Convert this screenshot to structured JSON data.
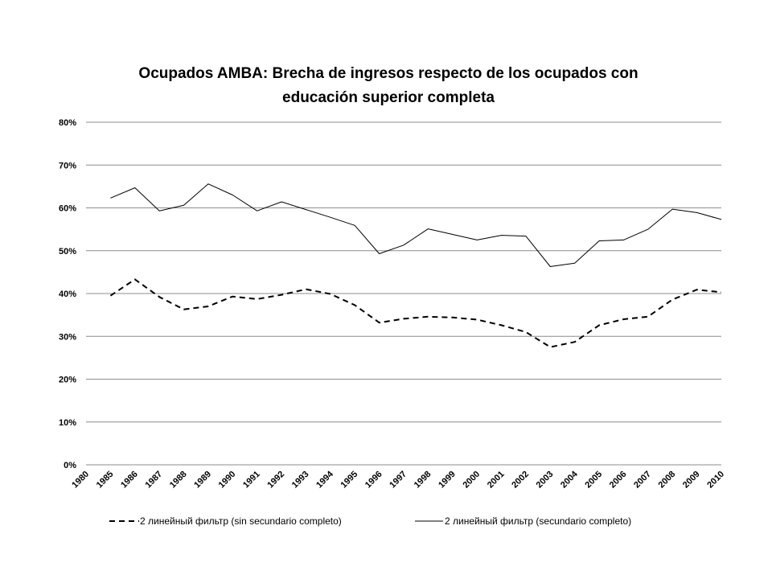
{
  "chart_data": {
    "type": "line",
    "title_lines": [
      "Ocupados AMBA: Brecha de ingresos respecto de los ocupados con",
      "educación superior completa"
    ],
    "categories": [
      "1980",
      "1985",
      "1986",
      "1987",
      "1988",
      "1989",
      "1990",
      "1991",
      "1992",
      "1993",
      "1994",
      "1995",
      "1996",
      "1997",
      "1998",
      "1999",
      "2000",
      "2001",
      "2002",
      "2003",
      "2004",
      "2005",
      "2006",
      "2007",
      "2008",
      "2009",
      "2010"
    ],
    "yticks": [
      "0%",
      "10%",
      "20%",
      "30%",
      "40%",
      "50%",
      "60%",
      "70%",
      "80%"
    ],
    "ylim": [
      0,
      80
    ],
    "grid": true,
    "legend_position": "bottom",
    "series": [
      {
        "name": "2 линейный фильтр (sin secundario completo)",
        "style": "dashed",
        "color": "#000000",
        "values": [
          null,
          39.5,
          43.3,
          39.2,
          36.3,
          37.0,
          39.3,
          38.7,
          39.7,
          41.0,
          39.9,
          37.3,
          33.2,
          34.1,
          34.6,
          34.4,
          33.9,
          32.6,
          31.0,
          27.5,
          28.7,
          32.6,
          34.0,
          34.6,
          38.6,
          40.9,
          40.3
        ]
      },
      {
        "name": "2 линейный фильтр (secundario completo)",
        "style": "solid",
        "color": "#000000",
        "values": [
          null,
          62.3,
          64.7,
          59.3,
          60.6,
          65.6,
          63.0,
          59.3,
          61.4,
          59.6,
          57.8,
          55.9,
          49.3,
          51.3,
          55.1,
          53.8,
          52.5,
          53.6,
          53.4,
          46.3,
          47.1,
          52.3,
          52.5,
          55.0,
          59.7,
          58.9,
          57.3
        ]
      }
    ]
  }
}
